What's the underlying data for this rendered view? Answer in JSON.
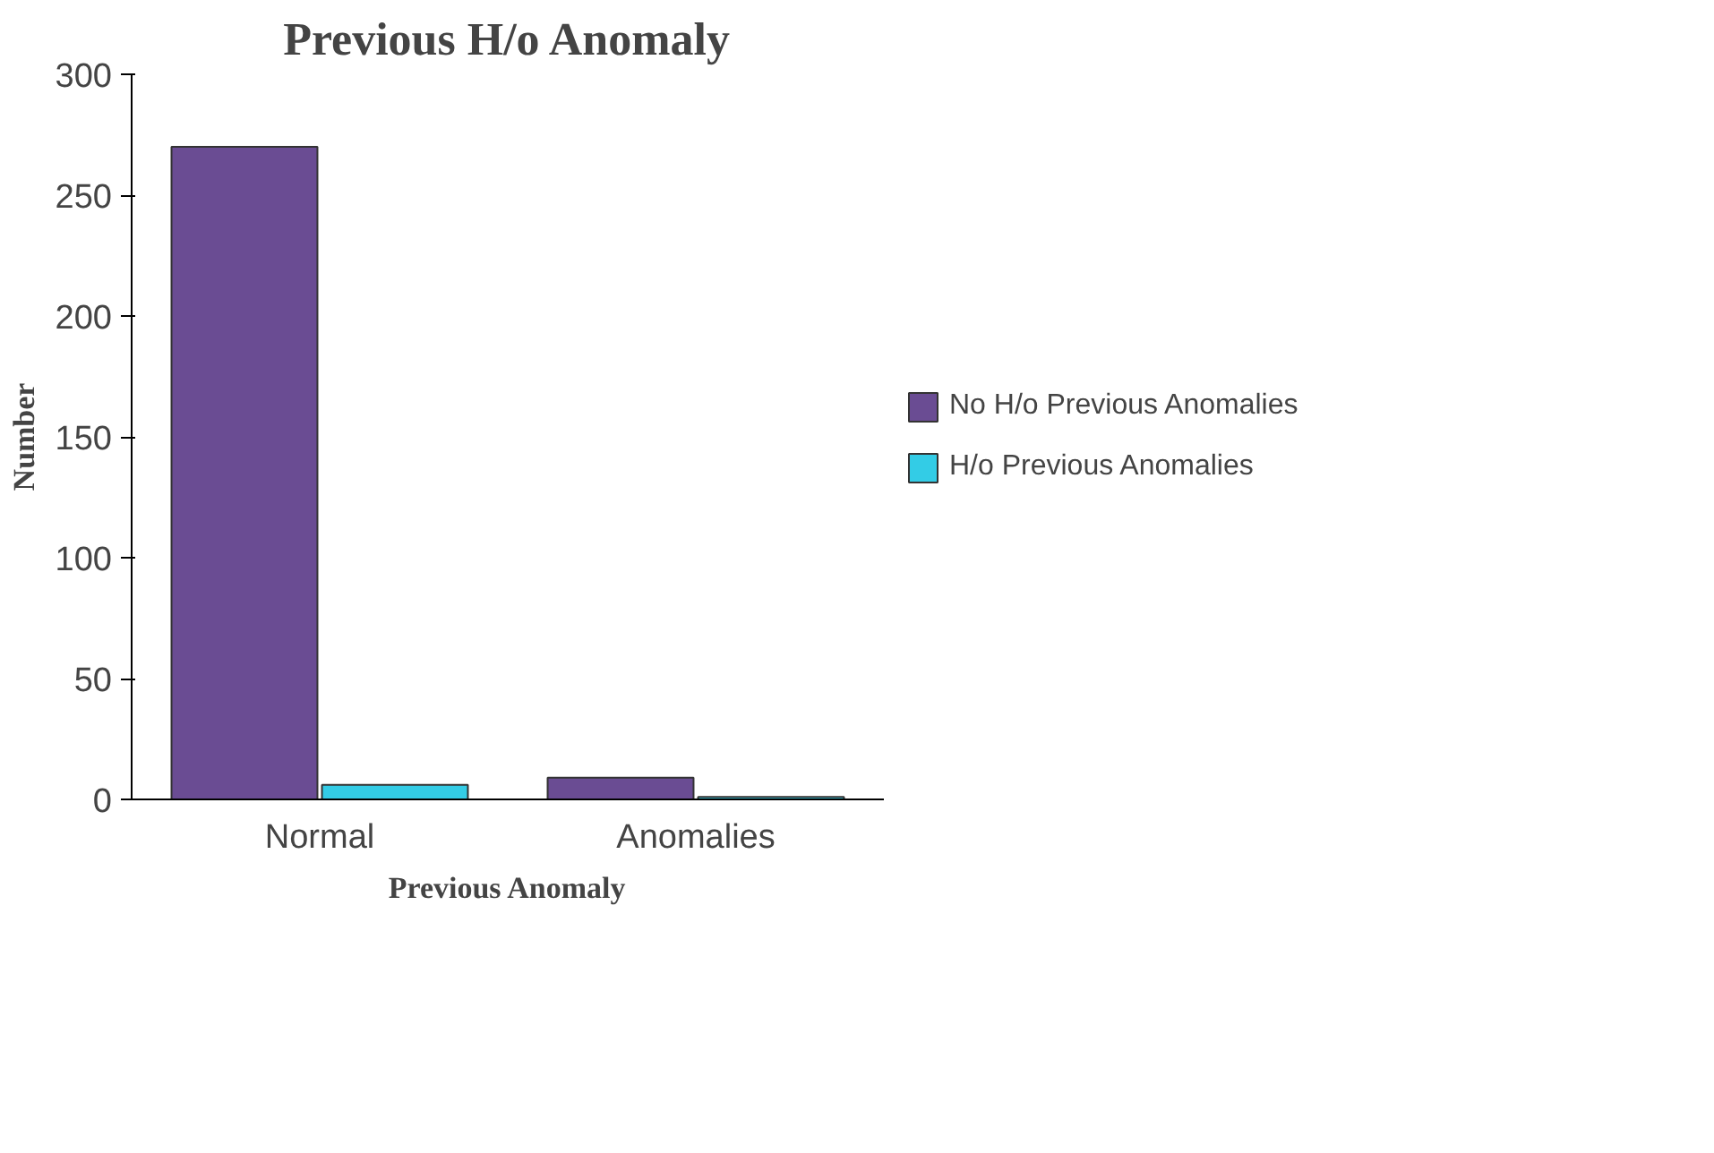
{
  "chart_data": {
    "type": "bar",
    "title": "Previous H/o Anomaly",
    "xlabel": "Previous Anomaly",
    "ylabel": "Number",
    "categories": [
      "Normal",
      "Anomalies"
    ],
    "series": [
      {
        "name": "No H/o Previous Anomalies",
        "color": "#6a4c93",
        "values": [
          270,
          9
        ]
      },
      {
        "name": "H/o Previous Anomalies",
        "color": "#33cce6",
        "values": [
          6,
          1
        ]
      }
    ],
    "ylim": [
      0,
      300
    ],
    "yticks": [
      0,
      50,
      100,
      150,
      200,
      250,
      300
    ],
    "grid": false,
    "legend": "right"
  }
}
